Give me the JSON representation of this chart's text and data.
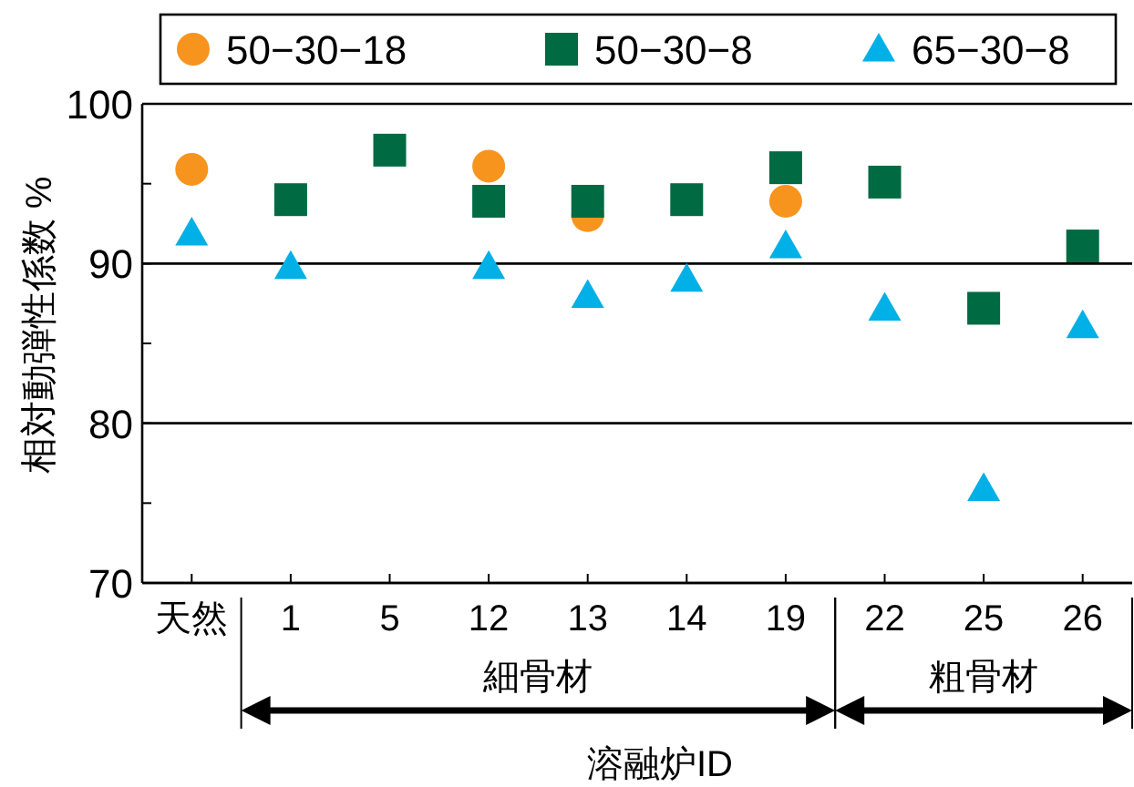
{
  "chart_data": {
    "type": "scatter",
    "ylabel": "相対動弾性係数 %",
    "xlabel": "溶融炉ID",
    "categories": [
      "天然",
      "1",
      "5",
      "12",
      "13",
      "14",
      "19",
      "22",
      "25",
      "26"
    ],
    "series": [
      {
        "name": "50−30−18",
        "color": "#f7941d",
        "marker": "circle",
        "values": [
          95.9,
          null,
          null,
          96.1,
          93.0,
          null,
          93.9,
          null,
          null,
          null
        ]
      },
      {
        "name": "50−30−8",
        "color": "#006a43",
        "marker": "square",
        "values": [
          null,
          94.0,
          97.1,
          93.9,
          93.9,
          94.0,
          96.0,
          95.1,
          87.2,
          91.1
        ]
      },
      {
        "name": "65−30−8",
        "color": "#00b0e6",
        "marker": "triangle",
        "values": [
          91.9,
          89.8,
          null,
          89.8,
          88.0,
          89.0,
          91.1,
          87.2,
          75.9,
          86.1
        ]
      }
    ],
    "ylim": [
      70,
      100
    ],
    "yticks": [
      70,
      {
        "value": 75,
        "label": null
      },
      80,
      {
        "value": 85,
        "label": null
      },
      90,
      {
        "value": 95,
        "label": null
      },
      100
    ],
    "grid": "y",
    "legend": "top",
    "annotations": [
      "細骨材",
      "粗骨材"
    ]
  }
}
